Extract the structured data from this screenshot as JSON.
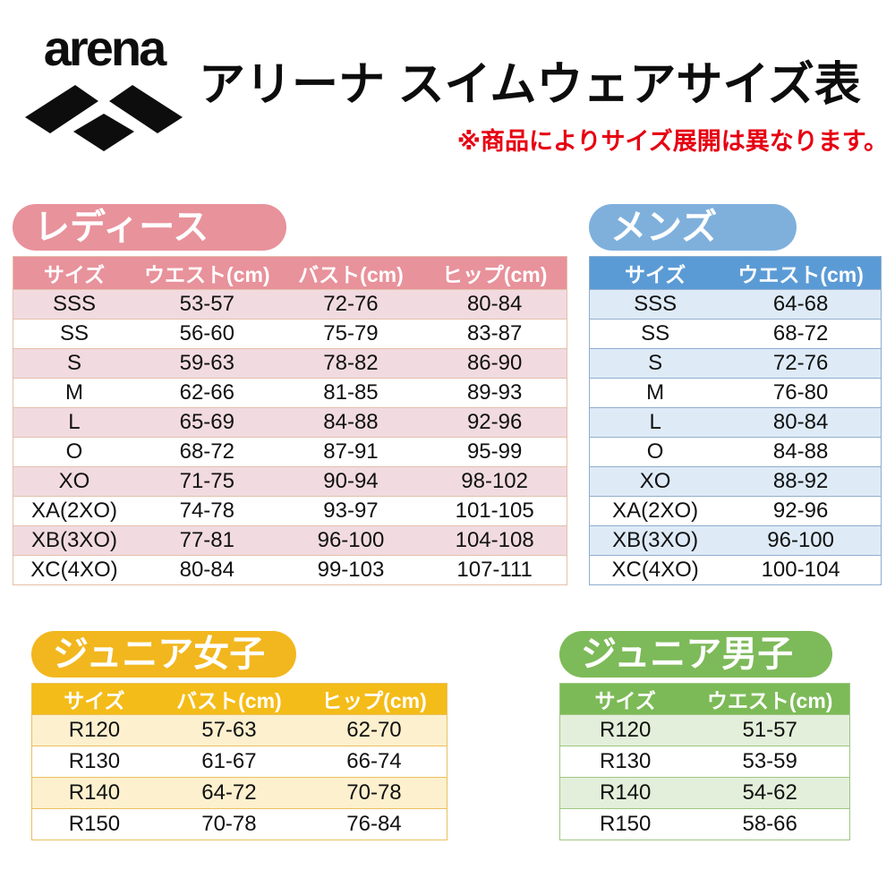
{
  "header": {
    "brand": "arena",
    "title": "アリーナ スイムウェアサイズ表",
    "notice": "※商品によりサイズ展開は異なります。",
    "notice_color": "#E60012"
  },
  "tables": {
    "ladies": {
      "label": "レディース",
      "columns": [
        "サイズ",
        "ウエスト(cm)",
        "バスト(cm)",
        "ヒップ(cm)"
      ],
      "rows": [
        [
          "SSS",
          "53-57",
          "72-76",
          "80-84"
        ],
        [
          "SS",
          "56-60",
          "75-79",
          "83-87"
        ],
        [
          "S",
          "59-63",
          "78-82",
          "86-90"
        ],
        [
          "M",
          "62-66",
          "81-85",
          "89-93"
        ],
        [
          "L",
          "65-69",
          "84-88",
          "92-96"
        ],
        [
          "O",
          "68-72",
          "87-91",
          "95-99"
        ],
        [
          "XO",
          "71-75",
          "90-94",
          "98-102"
        ],
        [
          "XA(2XO)",
          "74-78",
          "93-97",
          "101-105"
        ],
        [
          "XB(3XO)",
          "77-81",
          "96-100",
          "104-108"
        ],
        [
          "XC(4XO)",
          "80-84",
          "99-103",
          "107-111"
        ]
      ],
      "colors": {
        "pill": "#E8929B",
        "header": "#E8929B",
        "alt_row": "#F1DBE1",
        "border": "#E5BFA9"
      }
    },
    "mens": {
      "label": "メンズ",
      "columns": [
        "サイズ",
        "ウエスト(cm)"
      ],
      "rows": [
        [
          "SSS",
          "64-68"
        ],
        [
          "SS",
          "68-72"
        ],
        [
          "S",
          "72-76"
        ],
        [
          "M",
          "76-80"
        ],
        [
          "L",
          "80-84"
        ],
        [
          "O",
          "84-88"
        ],
        [
          "XO",
          "88-92"
        ],
        [
          "XA(2XO)",
          "92-96"
        ],
        [
          "XB(3XO)",
          "96-100"
        ],
        [
          "XC(4XO)",
          "100-104"
        ]
      ],
      "colors": {
        "pill": "#7FB0DC",
        "header": "#5B9BD5",
        "alt_row": "#DEEBF7",
        "border": "#8FAECE"
      }
    },
    "junior_girls": {
      "label": "ジュニア女子",
      "columns": [
        "サイズ",
        "バスト(cm)",
        "ヒップ(cm)"
      ],
      "rows": [
        [
          "R120",
          "57-63",
          "62-70"
        ],
        [
          "R130",
          "61-67",
          "66-74"
        ],
        [
          "R140",
          "64-72",
          "70-78"
        ],
        [
          "R150",
          "70-78",
          "76-84"
        ]
      ],
      "colors": {
        "pill": "#F2B71E",
        "header": "#F4BC18",
        "alt_row": "#FCF0CE",
        "border": "#E9C05E"
      }
    },
    "junior_boys": {
      "label": "ジュニア男子",
      "columns": [
        "サイズ",
        "ウエスト(cm)"
      ],
      "rows": [
        [
          "R120",
          "51-57"
        ],
        [
          "R130",
          "53-59"
        ],
        [
          "R140",
          "54-62"
        ],
        [
          "R150",
          "58-66"
        ]
      ],
      "colors": {
        "pill": "#7DBA59",
        "header": "#7CBA57",
        "alt_row": "#E3EFDA",
        "border": "#9DC783"
      }
    }
  }
}
